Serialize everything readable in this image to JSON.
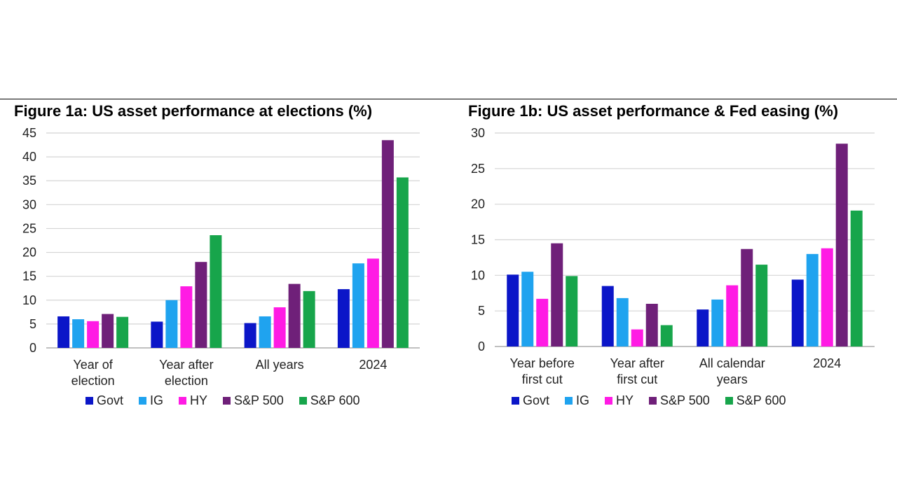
{
  "chart_data": [
    {
      "type": "bar",
      "title": "Figure 1a: US asset performance at elections (%)",
      "categories": [
        [
          "Year of",
          "election"
        ],
        [
          "Year after",
          "election"
        ],
        [
          "All years"
        ],
        [
          "2024"
        ]
      ],
      "series": [
        {
          "name": "Govt",
          "color": "#0b16c8",
          "values": [
            6.6,
            5.5,
            5.2,
            12.3
          ]
        },
        {
          "name": "IG",
          "color": "#1fa3ef",
          "values": [
            6.0,
            10.0,
            6.6,
            17.7
          ]
        },
        {
          "name": "HY",
          "color": "#ff1be4",
          "values": [
            5.6,
            12.9,
            8.5,
            18.7
          ]
        },
        {
          "name": "S&P 500",
          "color": "#6f2079",
          "values": [
            7.1,
            18.0,
            13.4,
            43.5
          ]
        },
        {
          "name": "S&P 600",
          "color": "#17a54b",
          "values": [
            6.5,
            23.6,
            11.9,
            35.7
          ]
        }
      ],
      "ylim": [
        0,
        45
      ],
      "yticks": [
        "0",
        "5",
        "10",
        "15",
        "20",
        "25",
        "30",
        "35",
        "40",
        "45"
      ],
      "grid": true,
      "legend": "bottom"
    },
    {
      "type": "bar",
      "title": "Figure 1b: US asset performance & Fed easing (%)",
      "categories": [
        [
          "Year before",
          "first cut"
        ],
        [
          "Year after",
          "first cut"
        ],
        [
          "All calendar",
          "years"
        ],
        [
          "2024"
        ]
      ],
      "series": [
        {
          "name": "Govt",
          "color": "#0b16c8",
          "values": [
            10.1,
            8.5,
            5.2,
            9.4
          ]
        },
        {
          "name": "IG",
          "color": "#1fa3ef",
          "values": [
            10.5,
            6.8,
            6.6,
            13.0
          ]
        },
        {
          "name": "HY",
          "color": "#ff1be4",
          "values": [
            6.7,
            2.4,
            8.6,
            13.8
          ]
        },
        {
          "name": "S&P 500",
          "color": "#6f2079",
          "values": [
            14.5,
            6.0,
            13.7,
            28.5
          ]
        },
        {
          "name": "S&P 600",
          "color": "#17a54b",
          "values": [
            9.9,
            3.0,
            11.5,
            19.1
          ]
        }
      ],
      "ylim": [
        0,
        30
      ],
      "yticks": [
        "0",
        "5",
        "10",
        "15",
        "20",
        "25",
        "30"
      ],
      "grid": true,
      "legend": "bottom"
    }
  ]
}
